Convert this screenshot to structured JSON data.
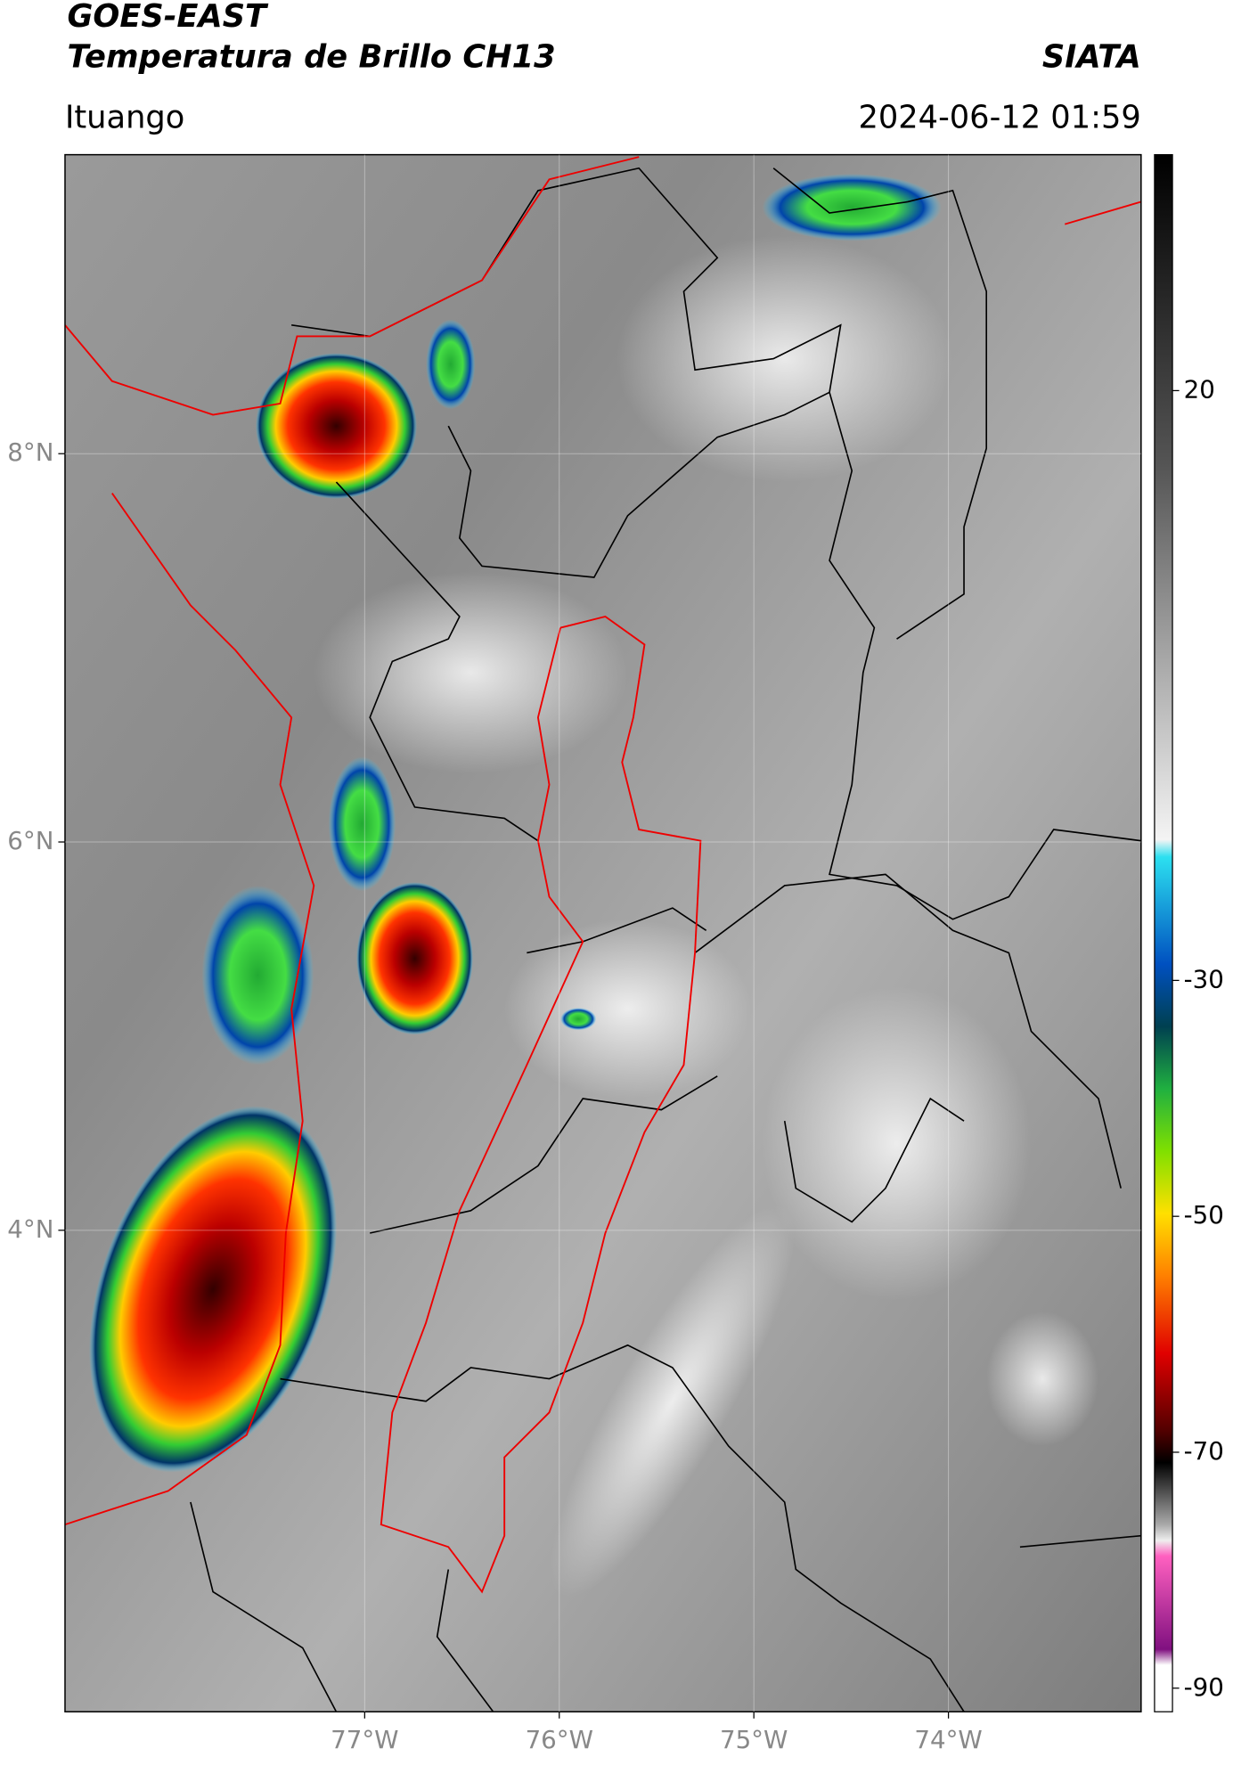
{
  "header": {
    "title_line1": "GOES-EAST",
    "title_line2": "Temperatura de Brillo CH13",
    "agency": "SIATA",
    "location": "Ituango",
    "timestamp": "2024-06-12 01:59"
  },
  "map": {
    "xlim": [
      -78.54,
      -73.01
    ],
    "ylim": [
      1.52,
      9.54
    ],
    "xticks": [
      {
        "value": -77,
        "label": "77°W"
      },
      {
        "value": -76,
        "label": "76°W"
      },
      {
        "value": -75,
        "label": "75°W"
      },
      {
        "value": -74,
        "label": "74°W"
      }
    ],
    "yticks": [
      {
        "value": 8,
        "label": "8°N"
      },
      {
        "value": 6,
        "label": "6°N"
      },
      {
        "value": 4,
        "label": "4°N"
      }
    ]
  },
  "colorbar": {
    "lim": [
      -92,
      40
    ],
    "ticks": [
      20,
      -30,
      -50,
      -70,
      -90
    ]
  }
}
